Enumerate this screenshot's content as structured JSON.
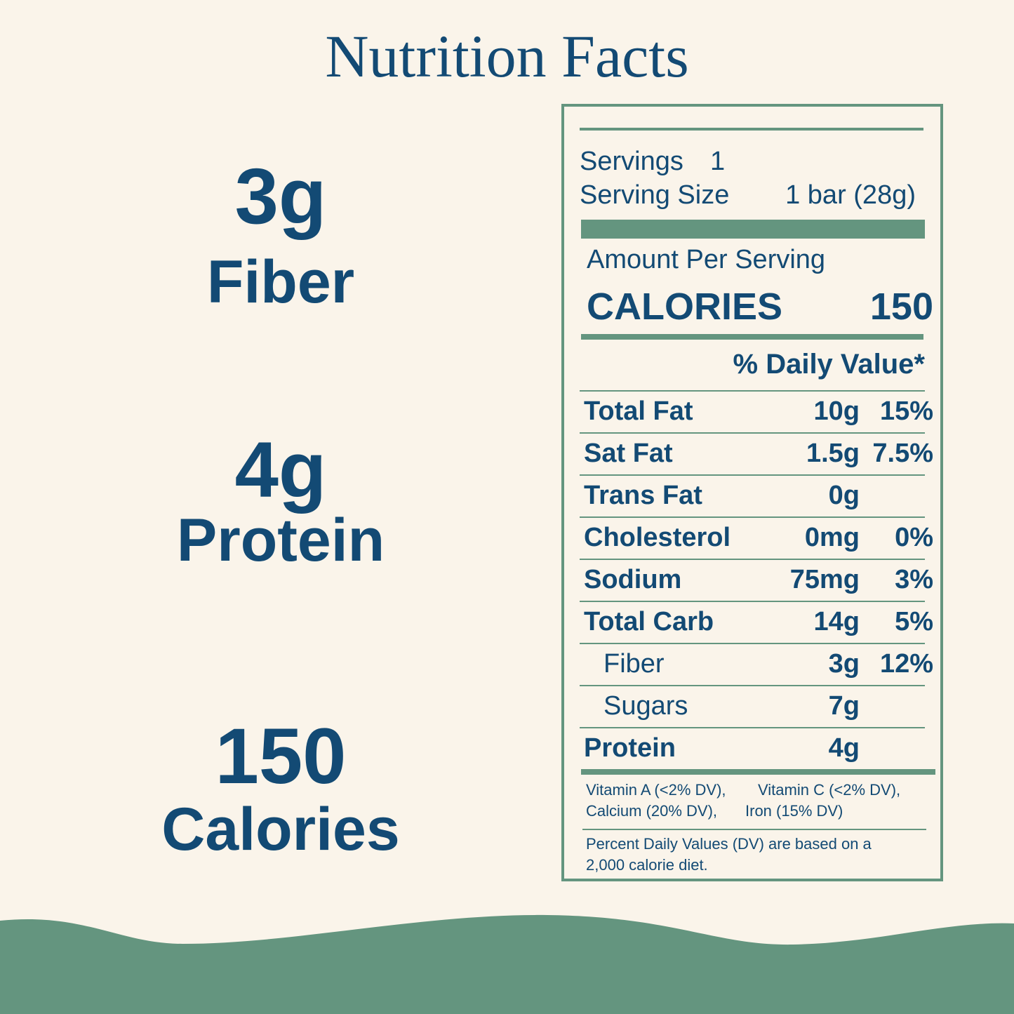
{
  "title": "Nutrition Facts",
  "highlights": [
    {
      "amount": "3g",
      "label": "Fiber"
    },
    {
      "amount": "4g",
      "label": "Protein"
    },
    {
      "amount": "150",
      "label": "Calories"
    }
  ],
  "facts": {
    "servings": {
      "label": "Servings",
      "value": "1"
    },
    "serving_size": {
      "label": "Serving Size",
      "value": "1 bar (28g)"
    },
    "amount_per_serving": "Amount Per Serving",
    "calories": {
      "label": "CALORIES",
      "value": "150"
    },
    "daily_value_header": "% Daily Value*",
    "rows": [
      {
        "name": "Total Fat",
        "amount": "10g",
        "dv": "15%",
        "indent": false
      },
      {
        "name": "Sat Fat",
        "amount": "1.5g",
        "dv": "7.5%",
        "indent": false
      },
      {
        "name": "Trans Fat",
        "amount": "0g",
        "indent": false
      },
      {
        "name": "Cholesterol",
        "amount": "0mg",
        "dv": "0%",
        "indent": false
      },
      {
        "name": "Sodium",
        "amount": "75mg",
        "dv": "3%",
        "indent": false
      },
      {
        "name": "Total Carb",
        "amount": "14g",
        "dv": "5%",
        "indent": false
      },
      {
        "name": "Fiber",
        "amount": "3g",
        "dv": "12%",
        "indent": true
      },
      {
        "name": "Sugars",
        "amount": "7g",
        "indent": true
      },
      {
        "name": "Protein",
        "amount": "4g",
        "indent": false
      }
    ],
    "vitamins": [
      "Vitamin A (<2% DV),",
      "Vitamin C (<2% DV),",
      "Calcium (20% DV),",
      "Iron (15% DV)"
    ],
    "footnote": "Percent Daily Values (DV) are based on a 2,000 calorie diet."
  }
}
